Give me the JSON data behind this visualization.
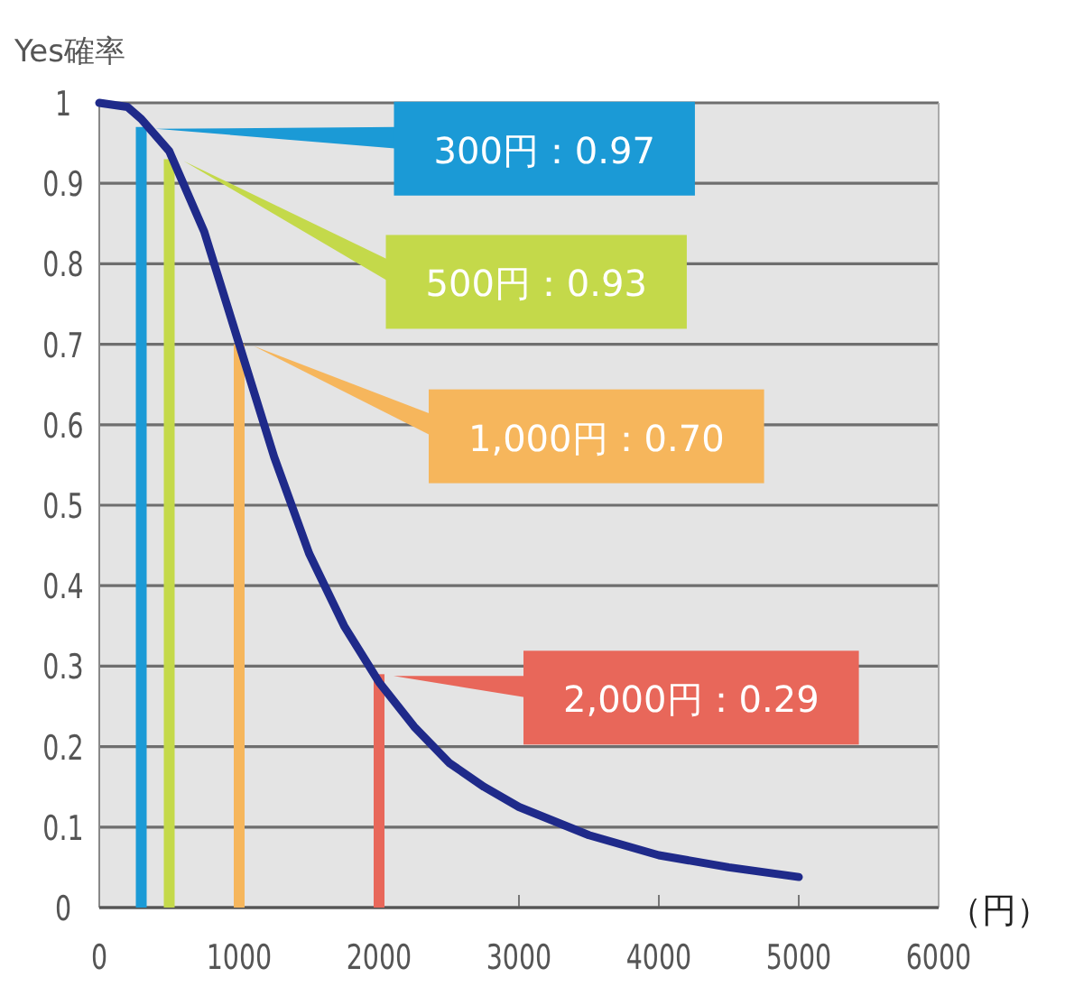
{
  "chart_data": {
    "type": "line",
    "ylabel": "Yes確率",
    "xlabel": "（円）",
    "xlim": [
      0,
      6000
    ],
    "xticks": [
      0,
      1000,
      2000,
      3000,
      4000,
      5000,
      6000
    ],
    "ylim": [
      0,
      1
    ],
    "yticks": [
      0,
      0.1,
      0.2,
      0.3,
      0.4,
      0.5,
      0.6,
      0.7,
      0.8,
      0.9,
      1
    ],
    "grid": "y",
    "marker": "none",
    "line_style": "solid",
    "series": [
      {
        "color": "#1f2a8a",
        "x": [
          0,
          200,
          300,
          500,
          750,
          1000,
          1250,
          1500,
          1750,
          2000,
          2250,
          2500,
          2750,
          3000,
          3500,
          4000,
          4500,
          5000
        ],
        "values": [
          1.0,
          0.995,
          0.98,
          0.94,
          0.84,
          0.7,
          0.56,
          0.44,
          0.35,
          0.28,
          0.225,
          0.18,
          0.15,
          0.125,
          0.09,
          0.065,
          0.05,
          0.038
        ]
      },
      {
        "type": "bar",
        "colors": [
          "#1b9ad6",
          "#c4d94a",
          "#f6b65c",
          "#e8675a"
        ],
        "x": [
          300,
          500,
          1000,
          2000
        ],
        "values": [
          0.97,
          0.93,
          0.7,
          0.29
        ]
      }
    ],
    "annotations": [
      "300円：0.97",
      "500円：0.93",
      "1,000円：0.70",
      "2,000円：0.29"
    ]
  }
}
